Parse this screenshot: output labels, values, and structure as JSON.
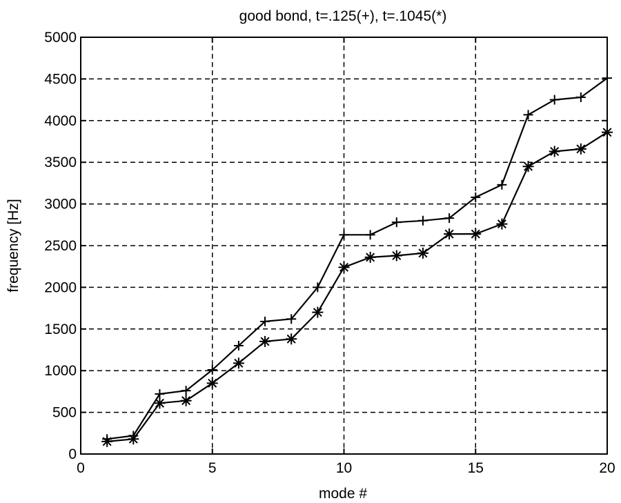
{
  "chart_data": {
    "type": "line",
    "title": "good bond, t=.125(+), t=.1045(*)",
    "xlabel": "mode #",
    "ylabel": "frequency [Hz]",
    "xlim": [
      0,
      20
    ],
    "ylim": [
      0,
      5000
    ],
    "xticks": [
      0,
      5,
      10,
      15,
      20
    ],
    "yticks": [
      0,
      500,
      1000,
      1500,
      2000,
      2500,
      3000,
      3500,
      4000,
      4500,
      5000
    ],
    "grid": true,
    "legend": "none",
    "x": [
      1,
      2,
      3,
      4,
      5,
      6,
      7,
      8,
      9,
      10,
      11,
      12,
      13,
      14,
      15,
      16,
      17,
      18,
      19,
      20
    ],
    "series": [
      {
        "marker": "plus",
        "values": [
          180,
          220,
          720,
          760,
          1010,
          1300,
          1590,
          1620,
          2000,
          2630,
          2630,
          2780,
          2800,
          2830,
          3080,
          3230,
          4070,
          4250,
          4280,
          4510
        ]
      },
      {
        "marker": "asterisk",
        "values": [
          150,
          180,
          610,
          640,
          850,
          1090,
          1350,
          1380,
          1700,
          2240,
          2360,
          2380,
          2410,
          2640,
          2640,
          2760,
          3450,
          3630,
          3660,
          3860
        ]
      }
    ],
    "colors": {
      "line": "#000000",
      "grid": "#000000",
      "background": "#ffffff"
    }
  }
}
